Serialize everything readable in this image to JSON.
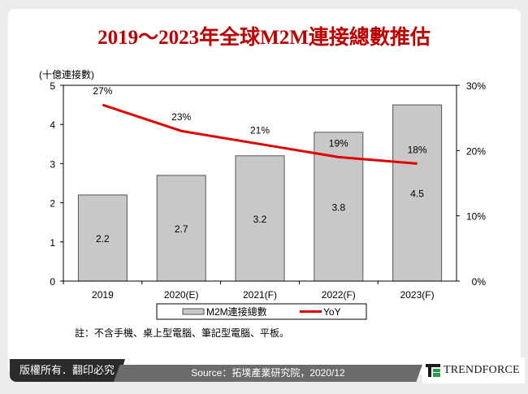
{
  "title": "2019～2023年全球M2M連接總數推估",
  "chart_data": {
    "type": "bar+line",
    "title": "2019～2023年全球M2M連接總數推估",
    "ylabel": "(十億連接數)",
    "categories": [
      "2019",
      "2020(E)",
      "2021(F)",
      "2022(F)",
      "2023(F)"
    ],
    "series": [
      {
        "name": "M2M連接總數",
        "type": "bar",
        "axis": "left",
        "values": [
          2.2,
          2.7,
          3.2,
          3.8,
          4.5
        ],
        "labels": [
          "2.2",
          "2.7",
          "3.2",
          "3.8",
          "4.5"
        ],
        "color": "#c8c8c8"
      },
      {
        "name": "YoY",
        "type": "line",
        "axis": "right",
        "values": [
          27,
          23,
          21,
          19,
          18
        ],
        "labels": [
          "27%",
          "23%",
          "21%",
          "19%",
          "18%"
        ],
        "color": "#e00000"
      }
    ],
    "ylim": [
      0,
      5
    ],
    "yticks": [
      "0",
      "1",
      "2",
      "3",
      "4",
      "5"
    ],
    "y2lim": [
      0,
      30
    ],
    "y2ticks": [
      "0%",
      "10%",
      "20%",
      "30%"
    ],
    "legend": "bottom",
    "grid": false
  },
  "note": "註：不含手機、桌上型電腦、筆記型電腦、平板。",
  "footer": {
    "copyright": "版權所有．翻印必究",
    "source": "Source：拓墣產業研究院，2020/12",
    "logo": "TRENDFORCE"
  }
}
